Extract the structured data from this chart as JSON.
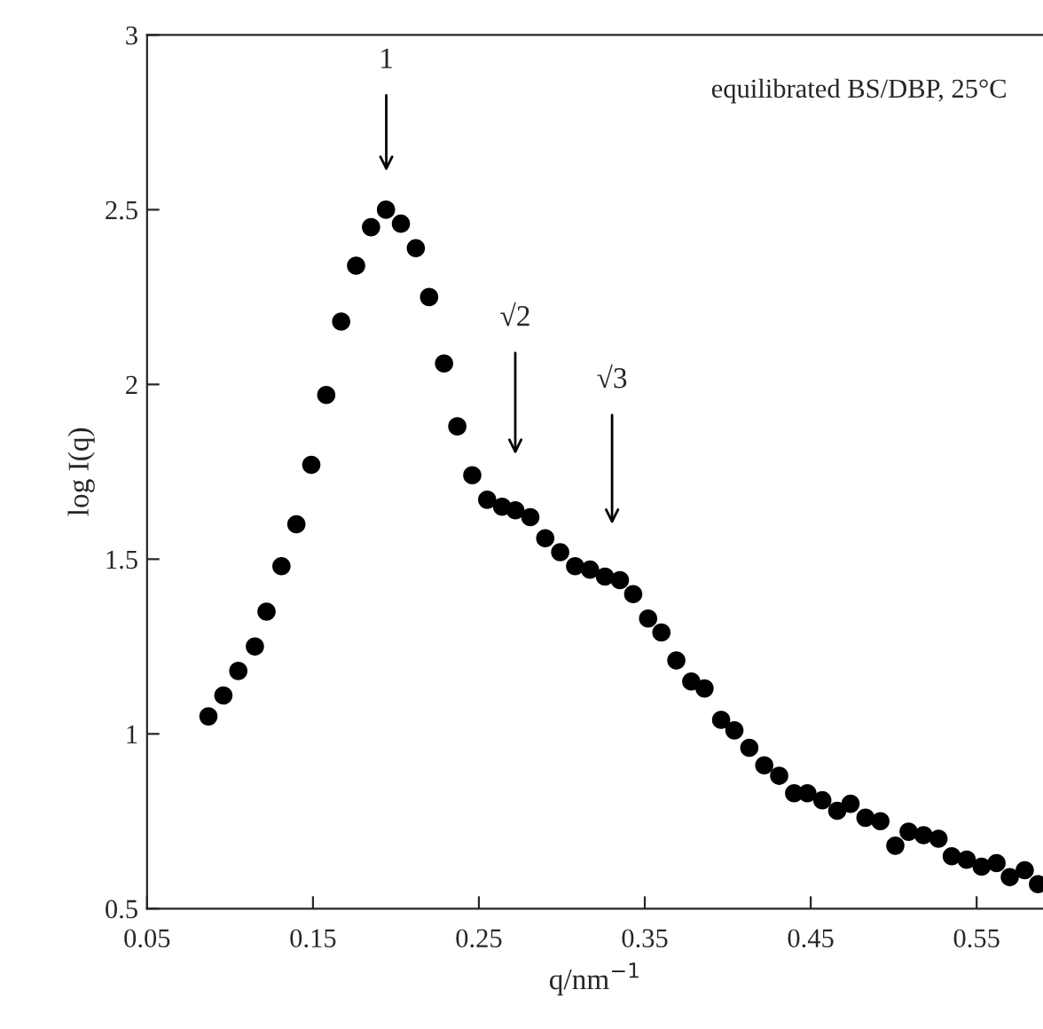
{
  "chart_data": {
    "type": "scatter",
    "xlabel": "q/nm$^{−1}$",
    "ylabel": "log I(q)",
    "annotations": [
      "equilibrated BS/DBP, 25°C",
      "1",
      "√2",
      "√3"
    ],
    "x": [
      0.087,
      0.096,
      0.105,
      0.115,
      0.122,
      0.131,
      0.14,
      0.149,
      0.158,
      0.167,
      0.176,
      0.185,
      0.194,
      0.203,
      0.212,
      0.22,
      0.229,
      0.237,
      0.246,
      0.255,
      0.264,
      0.272,
      0.281,
      0.29,
      0.299,
      0.308,
      0.317,
      0.326,
      0.335,
      0.343,
      0.352,
      0.36,
      0.369,
      0.378,
      0.386,
      0.396,
      0.404,
      0.413,
      0.422,
      0.431,
      0.44,
      0.448,
      0.457,
      0.466,
      0.474,
      0.483,
      0.492,
      0.501,
      0.509,
      0.518,
      0.527,
      0.535,
      0.544,
      0.553,
      0.562,
      0.57,
      0.579,
      0.587
    ],
    "series": [
      {
        "color": "#000000",
        "values": [
          1.05,
          1.11,
          1.18,
          1.25,
          1.35,
          1.48,
          1.6,
          1.77,
          1.97,
          2.18,
          2.34,
          2.45,
          2.5,
          2.46,
          2.39,
          2.25,
          2.06,
          1.88,
          1.74,
          1.67,
          1.65,
          1.64,
          1.62,
          1.56,
          1.52,
          1.48,
          1.47,
          1.45,
          1.44,
          1.4,
          1.33,
          1.29,
          1.21,
          1.15,
          1.13,
          1.04,
          1.01,
          0.96,
          0.91,
          0.88,
          0.83,
          0.83,
          0.81,
          0.78,
          0.8,
          0.76,
          0.75,
          0.68,
          0.72,
          0.71,
          0.7,
          0.65,
          0.64,
          0.62,
          0.63,
          0.59,
          0.61,
          0.57
        ]
      }
    ],
    "marker": "circle",
    "grid": false,
    "legend": false,
    "xlim": [
      0.05,
      0.59
    ],
    "xticks": [
      {
        "value": 0.05,
        "label": "0.05"
      },
      {
        "value": 0.15,
        "label": "0.15"
      },
      {
        "value": 0.25,
        "label": "0.25"
      },
      {
        "value": 0.35,
        "label": "0.35"
      },
      {
        "value": 0.45,
        "label": "0.45"
      },
      {
        "value": 0.55,
        "label": "0.55"
      }
    ],
    "ylim": [
      0.5,
      3
    ],
    "yticks": [
      0.5,
      1,
      1.5,
      2,
      2.5,
      3
    ]
  }
}
